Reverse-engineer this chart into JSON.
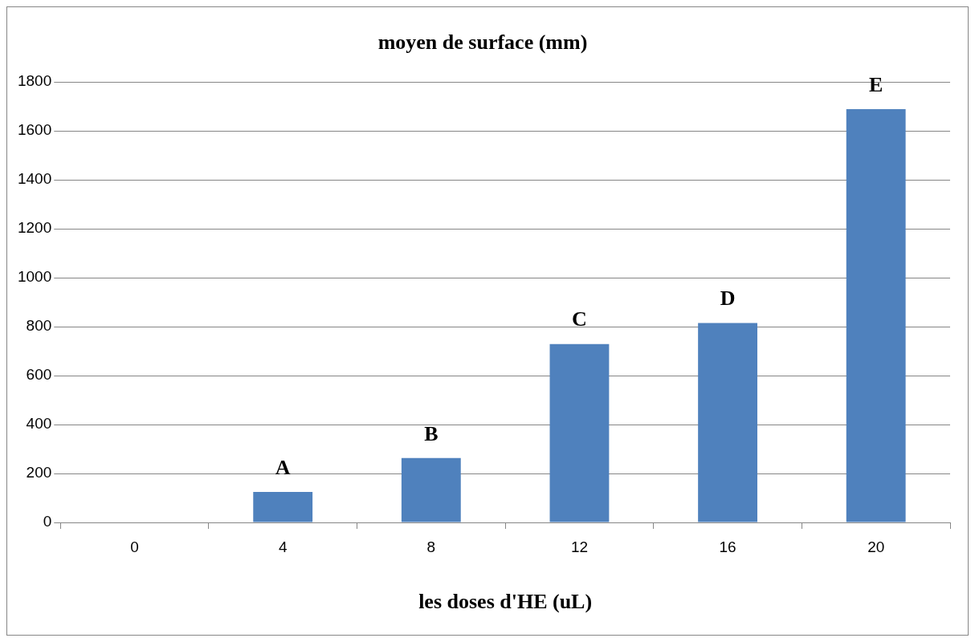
{
  "chart_data": {
    "type": "bar",
    "title": "moyen de surface (mm)",
    "xlabel": "les doses d'HE (uL)",
    "categories": [
      "0",
      "4",
      "8",
      "12",
      "16",
      "20"
    ],
    "values": [
      0,
      125,
      263,
      729,
      815,
      1689
    ],
    "color": "#4f81bd",
    "ylim": [
      0,
      1800
    ],
    "yticks": [
      0,
      200,
      400,
      600,
      800,
      1000,
      1200,
      1400,
      1600,
      1800
    ],
    "grid": "y",
    "annotations": [
      {
        "text": "A",
        "x": "4",
        "y": 125
      },
      {
        "text": "B",
        "x": "8",
        "y": 263
      },
      {
        "text": "C",
        "x": "12",
        "y": 729
      },
      {
        "text": "D",
        "x": "16",
        "y": 815
      },
      {
        "text": "E",
        "x": "20",
        "y": 1689
      }
    ]
  }
}
